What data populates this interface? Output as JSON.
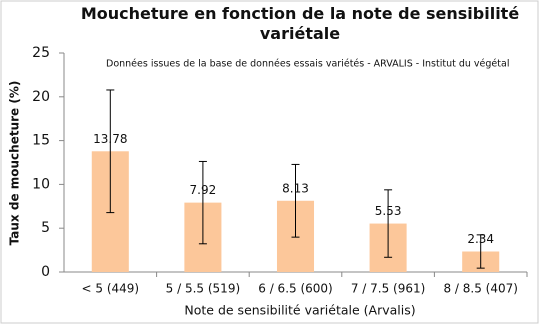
{
  "chart_data": {
    "type": "bar",
    "title": "Moucheture en fonction de la note de sensibilité variétale",
    "annotation": "Données issues de la base de données essais variétés - ARVALIS - Institut du végétal",
    "x_label": "Note de sensibilité variétale (Arvalis)",
    "y_label": "Taux de moucheture (%)",
    "categories": [
      "< 5 (449)",
      "5 / 5.5 (519)",
      "6 / 6.5 (600)",
      "7 / 7.5 (961)",
      "8 / 8.5 (407)"
    ],
    "series": [
      {
        "color": "#fcc79a",
        "values": [
          13.78,
          7.92,
          8.13,
          5.53,
          2.34
        ],
        "errors": [
          7.0,
          4.7,
          4.15,
          3.85,
          1.9
        ]
      }
    ],
    "ylim": [
      0,
      25
    ],
    "yticks": [
      0,
      5,
      10,
      15,
      20,
      25
    ],
    "grid": false
  }
}
